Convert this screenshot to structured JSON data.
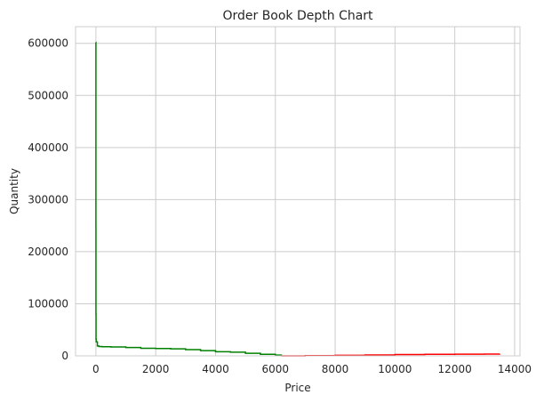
{
  "chart_data": {
    "type": "line",
    "title": "Order Book Depth Chart",
    "xlabel": "Price",
    "ylabel": "Quantity",
    "xlim": [
      -680,
      14180
    ],
    "ylim": [
      0,
      632000
    ],
    "x_ticks": [
      0,
      2000,
      4000,
      6000,
      8000,
      10000,
      12000,
      14000
    ],
    "y_ticks": [
      0,
      100000,
      200000,
      300000,
      400000,
      500000,
      600000
    ],
    "grid": true,
    "series": [
      {
        "side": "bids",
        "color": "#008000",
        "drawstyle": "steps",
        "x": [
          0,
          1,
          2,
          5,
          10,
          50,
          100,
          200,
          500,
          1000,
          1500,
          2000,
          2500,
          3000,
          3500,
          4000,
          4500,
          5000,
          5500,
          6000,
          6200
        ],
        "y": [
          602000,
          250000,
          80000,
          32000,
          27000,
          19000,
          18000,
          17500,
          17000,
          16000,
          14500,
          14000,
          13500,
          12000,
          10000,
          8000,
          7000,
          5000,
          3000,
          1500,
          0
        ]
      },
      {
        "side": "asks",
        "color": "#ff0000",
        "drawstyle": "steps",
        "x": [
          6200,
          7000,
          8000,
          9000,
          10000,
          11000,
          12000,
          13000,
          13500
        ],
        "y": [
          0,
          500,
          1000,
          1800,
          2500,
          3000,
          3200,
          3500,
          3800
        ]
      }
    ]
  }
}
